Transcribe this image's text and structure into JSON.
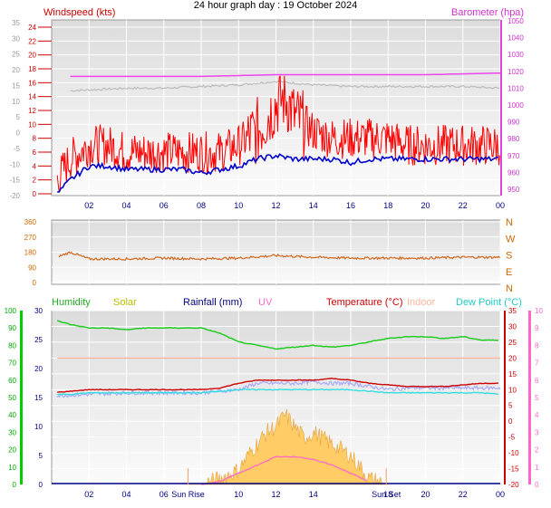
{
  "title": "24 hour graph day : 19 October 2024",
  "colors": {
    "windspeed": "#ff0000",
    "gust_avg": "#0000cc",
    "barometer": "#dd44dd",
    "baro_line": "#ee44ee",
    "baro_grey": "#bbbbbb",
    "wind_dir": "#d2691e",
    "humidity": "#22cc22",
    "solar": "#cccc00",
    "rainfall": "#000080",
    "uv": "#ff66cc",
    "temperature": "#cc0000",
    "indoor": "#ffb399",
    "dew_point": "#33dddd",
    "solar_fill": "#ffcc66",
    "hum_axis": "#00bb00"
  },
  "x_ticks": [
    "02",
    "04",
    "06",
    "08",
    "10",
    "12",
    "14",
    "16",
    "18",
    "20",
    "22",
    "00"
  ],
  "panel1": {
    "left_label": "Windspeed (kts)",
    "right_label": "Barometer (hpa)",
    "left_outer_ticks": [
      "35",
      "30",
      "25",
      "20",
      "15",
      "10",
      "5",
      "0",
      "-5",
      "-10",
      "-15",
      "-20"
    ],
    "left_inner_ticks": [
      "24",
      "22",
      "20",
      "18",
      "16",
      "14",
      "12",
      "10",
      "8",
      "6",
      "4",
      "2",
      "0"
    ],
    "right_ticks": [
      "1050",
      "1040",
      "1030",
      "1020",
      "1010",
      "1000",
      "990",
      "980",
      "970",
      "960",
      "950"
    ]
  },
  "panel2": {
    "left_ticks": [
      "360",
      "270",
      "180",
      "90",
      "0"
    ],
    "right_ticks": [
      "N",
      "W",
      "S",
      "E",
      "N"
    ]
  },
  "panel3": {
    "legend": {
      "humidity": "Humidity",
      "solar": "Solar",
      "rainfall": "Rainfall (mm)",
      "uv": "UV",
      "temperature": "Temperature (°C)",
      "indoor": "Indoor",
      "dew_point": "Dew Point (°C)"
    },
    "left_outer_ticks": [
      "100",
      "90",
      "80",
      "70",
      "60",
      "50",
      "40",
      "30",
      "20",
      "10",
      "0"
    ],
    "left_inner_ticks": [
      "30",
      "25",
      "20",
      "15",
      "10",
      "5",
      "0"
    ],
    "right_inner_ticks": [
      "35",
      "30",
      "25",
      "20",
      "15",
      "10",
      "5",
      "0",
      "-5",
      "-10",
      "-15",
      "-20"
    ],
    "right_outer_ticks": [
      "10",
      "9",
      "8",
      "7",
      "6",
      "5",
      "4",
      "3",
      "2",
      "1",
      "0"
    ],
    "sunrise_label": "Sun Rise",
    "sunset_label": "Sun Set"
  },
  "chart_data": [
    {
      "type": "line",
      "title": "24 hour graph day : 19 October 2024",
      "x_unit": "hour",
      "xlim": [
        0,
        24
      ],
      "series": [
        {
          "name": "Windspeed (kts)",
          "axis": "windspeed",
          "x": [
            0.3,
            1,
            2,
            3,
            4,
            5,
            6,
            7,
            8,
            9,
            10,
            11,
            11.5,
            12,
            12.5,
            13,
            14,
            15,
            16,
            17,
            18,
            19,
            20,
            21,
            22,
            23,
            24
          ],
          "y": [
            2,
            5,
            7,
            7,
            6,
            6,
            6,
            6,
            6,
            6,
            7,
            9,
            11,
            13,
            14,
            11,
            9,
            8,
            8,
            8,
            8,
            7,
            7,
            7,
            7,
            7,
            7
          ],
          "range": [
            1,
            17
          ]
        },
        {
          "name": "Average wind",
          "axis": "windspeed",
          "x": [
            0.3,
            1,
            2,
            3,
            4,
            5,
            6,
            7,
            8,
            9,
            10,
            11,
            12,
            13,
            14,
            15,
            16,
            17,
            18,
            19,
            20,
            21,
            22,
            23,
            24
          ],
          "y": [
            0,
            2,
            4,
            4,
            3.5,
            3.5,
            3.5,
            3.5,
            3,
            3.5,
            4,
            5,
            5.5,
            5,
            5,
            5,
            4.5,
            5,
            5,
            5,
            5,
            5,
            5,
            5,
            5
          ]
        },
        {
          "name": "Barometer (hpa)",
          "axis": "barometer",
          "x": [
            0,
            4,
            8,
            12,
            16,
            20,
            24
          ],
          "y": [
            1017,
            1017,
            1017,
            1018,
            1018,
            1018,
            1019
          ]
        },
        {
          "name": "Barometer (grey)",
          "axis": "barometer",
          "x": [
            0,
            2,
            4,
            6,
            8,
            10,
            12,
            14,
            16,
            18,
            20,
            22,
            24
          ],
          "y": [
            1008,
            1009,
            1010,
            1010,
            1011,
            1012,
            1014,
            1012,
            1011,
            1011,
            1011,
            1011,
            1010
          ]
        }
      ],
      "ylim_windspeed": [
        0,
        25
      ],
      "ylim_barometer": [
        945,
        1050
      ]
    },
    {
      "type": "line",
      "x_unit": "hour",
      "xlim": [
        0,
        24
      ],
      "ylim": [
        0,
        360
      ],
      "series": [
        {
          "name": "Wind direction",
          "x": [
            0,
            1,
            2,
            4,
            6,
            8,
            10,
            12,
            14,
            16,
            18,
            20,
            22,
            24
          ],
          "y": [
            140,
            180,
            140,
            140,
            145,
            140,
            145,
            160,
            150,
            145,
            145,
            145,
            150,
            150
          ]
        }
      ]
    },
    {
      "type": "line",
      "x_unit": "hour",
      "xlim": [
        0,
        24
      ],
      "series": [
        {
          "name": "Humidity",
          "axis": "humidity",
          "x": [
            0,
            1,
            2,
            3,
            4,
            5,
            6,
            7,
            8,
            9,
            10,
            11,
            12,
            13,
            14,
            15,
            16,
            17,
            18,
            19,
            20,
            21,
            22,
            23,
            24
          ],
          "y": [
            95,
            92,
            90,
            90,
            89,
            90,
            90,
            90,
            90,
            87,
            82,
            80,
            78,
            79,
            80,
            79,
            80,
            82,
            84,
            85,
            85,
            84,
            85,
            83,
            83
          ]
        },
        {
          "name": "Temperature (°C)",
          "axis": "temp",
          "x": [
            0,
            1,
            2,
            3,
            4,
            5,
            6,
            7,
            8,
            9,
            10,
            11,
            12,
            13,
            14,
            15,
            16,
            17,
            18,
            19,
            20,
            21,
            22,
            23,
            24
          ],
          "y": [
            9,
            9.5,
            10,
            10,
            10,
            10,
            10,
            10,
            10,
            10.5,
            12,
            13,
            13,
            13,
            13,
            13.5,
            13,
            12,
            11.5,
            11,
            11,
            11,
            11.5,
            12,
            12
          ]
        },
        {
          "name": "Indoor",
          "axis": "temp",
          "x": [
            0,
            4,
            8,
            12,
            16,
            20,
            24
          ],
          "y": [
            20,
            20,
            20,
            20,
            20,
            20,
            20
          ]
        },
        {
          "name": "Dew Point (°C)",
          "axis": "temp",
          "x": [
            0,
            1,
            2,
            3,
            4,
            5,
            6,
            7,
            8,
            9,
            10,
            11,
            12,
            13,
            14,
            15,
            16,
            17,
            18,
            19,
            20,
            21,
            22,
            23,
            24
          ],
          "y": [
            8.5,
            8.5,
            9,
            9,
            9,
            9,
            9,
            9,
            9,
            9.5,
            10,
            10,
            10,
            10,
            10,
            10,
            10,
            9.5,
            9,
            9,
            9,
            9,
            9,
            9,
            8.5
          ]
        },
        {
          "name": "Apparent",
          "axis": "temp",
          "x": [
            0,
            2,
            4,
            6,
            8,
            10,
            11,
            12,
            13,
            14,
            15,
            16,
            17,
            18,
            19,
            20,
            22,
            24
          ],
          "y": [
            8,
            8.5,
            9,
            9,
            9,
            10,
            12,
            12,
            12,
            12.5,
            12,
            12,
            11,
            10,
            10.5,
            10.5,
            10.5,
            10.5
          ]
        },
        {
          "name": "Solar",
          "axis": "solar",
          "x": [
            7.3,
            8,
            9,
            10,
            10.5,
            11,
            11.5,
            12,
            12.5,
            13,
            13.5,
            14,
            14.5,
            15,
            15.5,
            16,
            16.5,
            17,
            18
          ],
          "y": [
            0,
            0,
            1,
            2.5,
            5,
            7,
            9,
            10,
            12,
            10,
            8,
            9,
            8,
            7,
            6,
            5,
            3,
            1,
            0
          ]
        },
        {
          "name": "UV",
          "axis": "uv",
          "x": [
            8,
            9,
            10,
            11,
            12,
            13,
            14,
            15,
            16,
            17
          ],
          "y": [
            0,
            0.1,
            0.4,
            0.7,
            1.0,
            1.0,
            0.9,
            0.7,
            0.4,
            0.1
          ]
        },
        {
          "name": "Rainfall (mm)",
          "axis": "rain",
          "x": [
            0,
            24
          ],
          "y": [
            0,
            0
          ]
        }
      ],
      "sunrise_hour": 7.3,
      "sunset_hour": 17.9
    }
  ]
}
